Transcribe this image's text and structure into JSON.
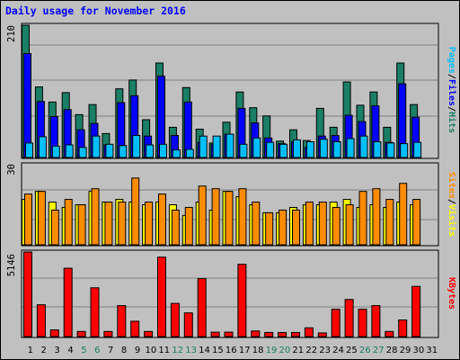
{
  "chart_data": [
    {
      "type": "bar",
      "title": "Daily usage for November 2016",
      "ylabel_parts": [
        "Pages",
        "Files",
        "Hits"
      ],
      "ymax_label": "210",
      "ylim": [
        0,
        210
      ],
      "categories": [
        "1",
        "2",
        "3",
        "4",
        "5",
        "6",
        "7",
        "8",
        "9",
        "10",
        "11",
        "12",
        "13",
        "14",
        "15",
        "16",
        "17",
        "18",
        "19",
        "20",
        "21",
        "22",
        "23",
        "24",
        "25",
        "26",
        "27",
        "28",
        "29",
        "30",
        "31"
      ],
      "weekend_days": [
        "5",
        "6",
        "12",
        "13",
        "19",
        "20",
        "26",
        "27"
      ],
      "series": [
        {
          "name": "Hits",
          "color": "#1a7f64",
          "values": [
            210,
            112,
            88,
            103,
            68,
            84,
            38,
            109,
            123,
            60,
            150,
            48,
            111,
            45,
            23,
            56,
            104,
            79,
            66,
            26,
            44,
            27,
            78,
            48,
            120,
            83,
            104,
            48,
            150,
            84,
            0
          ]
        },
        {
          "name": "Files",
          "color": "#0000ff",
          "values": [
            165,
            89,
            65,
            76,
            44,
            54,
            20,
            87,
            98,
            34,
            129,
            35,
            88,
            24,
            21,
            37,
            78,
            55,
            31,
            22,
            25,
            16,
            34,
            35,
            67,
            57,
            82,
            24,
            117,
            64,
            0
          ]
        },
        {
          "name": "Pages",
          "color": "#00bfff",
          "values": [
            23,
            33,
            18,
            20,
            16,
            34,
            21,
            19,
            35,
            20,
            21,
            12,
            13,
            34,
            34,
            37,
            21,
            31,
            24,
            21,
            28,
            25,
            29,
            25,
            30,
            34,
            25,
            23,
            22,
            24,
            0
          ]
        }
      ]
    },
    {
      "type": "bar",
      "ylabel_parts": [
        "Sites",
        "Visits"
      ],
      "ymax_label": "30",
      "ylim": [
        0,
        30
      ],
      "categories": [
        "1",
        "2",
        "3",
        "4",
        "5",
        "6",
        "7",
        "8",
        "9",
        "10",
        "11",
        "12",
        "13",
        "14",
        "15",
        "16",
        "17",
        "18",
        "19",
        "20",
        "21",
        "22",
        "23",
        "24",
        "25",
        "26",
        "27",
        "28",
        "29",
        "30",
        "31"
      ],
      "series": [
        {
          "name": "Visits",
          "color": "#ffff00",
          "values": [
            17,
            20,
            16,
            14,
            15,
            20,
            16,
            17,
            16,
            15,
            16,
            15,
            11,
            16,
            13,
            20,
            18,
            15,
            12,
            12,
            14,
            15,
            15,
            16,
            17,
            14,
            15,
            14,
            16,
            15,
            0
          ]
        },
        {
          "name": "Sites",
          "color": "#ff8c00",
          "values": [
            19,
            20,
            13,
            17,
            15,
            21,
            16,
            16,
            25,
            16,
            19,
            13,
            14,
            22,
            21,
            20,
            21,
            16,
            12,
            13,
            13,
            16,
            16,
            14,
            15,
            20,
            21,
            17,
            23,
            17,
            0
          ]
        }
      ]
    },
    {
      "type": "bar",
      "ylabel_parts": [
        "KBytes"
      ],
      "ymax_label": "5146",
      "ylim": [
        0,
        5146
      ],
      "categories": [
        "1",
        "2",
        "3",
        "4",
        "5",
        "6",
        "7",
        "8",
        "9",
        "10",
        "11",
        "12",
        "13",
        "14",
        "15",
        "16",
        "17",
        "18",
        "19",
        "20",
        "21",
        "22",
        "23",
        "24",
        "25",
        "26",
        "27",
        "28",
        "29",
        "30",
        "31"
      ],
      "series": [
        {
          "name": "KBytes",
          "color": "#ff0000",
          "values": [
            5146,
            1936,
            409,
            4159,
            312,
            2969,
            312,
            1885,
            936,
            312,
            4832,
            2020,
            1442,
            3523,
            268,
            270,
            4398,
            342,
            250,
            250,
            250,
            534,
            222,
            1662,
            2258,
            1662,
            1885,
            312,
            1012,
            3053,
            0
          ]
        }
      ]
    }
  ]
}
